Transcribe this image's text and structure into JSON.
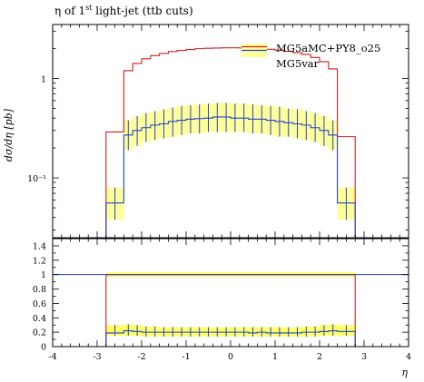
{
  "chart_data": {
    "type": "line",
    "title": "η of 1st light-jet (ttb cuts)",
    "title_pre": "η of 1",
    "title_sup": "st",
    "title_post": " light-jet (ttb cuts)",
    "xlabel": "η",
    "ylabel": "dσ/dη [pb]",
    "xlim": [
      -4,
      4
    ],
    "ylim_main": [
      0.025,
      3.5
    ],
    "y_scale_main": "log",
    "ylim_ratio": [
      0,
      1.5
    ],
    "x_ticks": [
      "-4",
      "-3",
      "-2",
      "-1",
      "0",
      "1",
      "2",
      "3",
      "4"
    ],
    "y_ticks_main": [
      "1",
      "10⁻¹"
    ],
    "y_ticks_ratio": [
      "0",
      "0.2",
      "0.4",
      "0.6",
      "0.8",
      "1",
      "1.2",
      "1.4"
    ],
    "legend_position": "top-right",
    "colors": {
      "mg5amc": "#cc2222",
      "mg5var": "#2244cc",
      "band": "#ffff99",
      "band_ratio": "#ffff66"
    },
    "bin_edges": [
      -2.8,
      -2.4,
      -2.2,
      -2.0,
      -1.8,
      -1.6,
      -1.4,
      -1.2,
      -1.0,
      -0.8,
      -0.6,
      -0.4,
      -0.2,
      0.0,
      0.2,
      0.4,
      0.6,
      0.8,
      1.0,
      1.2,
      1.4,
      1.6,
      1.8,
      2.0,
      2.2,
      2.4,
      2.8
    ],
    "series": [
      {
        "name": "MG5aMC+PY8_o25",
        "values": [
          0.29,
          1.2,
          1.42,
          1.58,
          1.7,
          1.79,
          1.87,
          1.92,
          1.96,
          2.0,
          2.02,
          2.03,
          2.04,
          2.04,
          2.03,
          2.02,
          2.0,
          1.97,
          1.93,
          1.88,
          1.82,
          1.75,
          1.63,
          1.48,
          1.25,
          0.26
        ]
      },
      {
        "name": "MG5var",
        "values": [
          0.056,
          0.27,
          0.3,
          0.32,
          0.34,
          0.35,
          0.37,
          0.38,
          0.39,
          0.395,
          0.4,
          0.41,
          0.41,
          0.4,
          0.4,
          0.39,
          0.39,
          0.38,
          0.37,
          0.36,
          0.35,
          0.34,
          0.32,
          0.3,
          0.27,
          0.056
        ],
        "band_low": [
          0.038,
          0.19,
          0.21,
          0.23,
          0.24,
          0.25,
          0.26,
          0.27,
          0.28,
          0.28,
          0.29,
          0.29,
          0.29,
          0.29,
          0.29,
          0.28,
          0.28,
          0.27,
          0.26,
          0.26,
          0.25,
          0.24,
          0.23,
          0.21,
          0.19,
          0.038
        ],
        "band_high": [
          0.08,
          0.38,
          0.42,
          0.45,
          0.47,
          0.49,
          0.51,
          0.53,
          0.54,
          0.55,
          0.56,
          0.57,
          0.57,
          0.56,
          0.56,
          0.55,
          0.54,
          0.53,
          0.52,
          0.5,
          0.49,
          0.47,
          0.45,
          0.42,
          0.38,
          0.08
        ]
      }
    ],
    "ratio": {
      "reference_name": "MG5aMC+PY8_o25",
      "reference_values": [
        1,
        1,
        1,
        1,
        1,
        1,
        1,
        1,
        1,
        1,
        1,
        1,
        1,
        1,
        1,
        1,
        1,
        1,
        1,
        1,
        1,
        1,
        1,
        1,
        1,
        1
      ],
      "reference_band": 0.03,
      "values": [
        0.19,
        0.22,
        0.21,
        0.2,
        0.2,
        0.2,
        0.2,
        0.2,
        0.2,
        0.2,
        0.2,
        0.2,
        0.2,
        0.2,
        0.2,
        0.19,
        0.2,
        0.19,
        0.19,
        0.19,
        0.19,
        0.2,
        0.2,
        0.21,
        0.22,
        0.21
      ],
      "band_low": [
        0.15,
        0.15,
        0.15,
        0.14,
        0.14,
        0.14,
        0.14,
        0.14,
        0.14,
        0.14,
        0.14,
        0.14,
        0.14,
        0.14,
        0.14,
        0.14,
        0.14,
        0.14,
        0.14,
        0.14,
        0.14,
        0.14,
        0.14,
        0.15,
        0.15,
        0.15
      ],
      "band_high": [
        0.3,
        0.31,
        0.3,
        0.28,
        0.28,
        0.27,
        0.27,
        0.27,
        0.27,
        0.27,
        0.27,
        0.27,
        0.27,
        0.27,
        0.27,
        0.27,
        0.27,
        0.27,
        0.27,
        0.27,
        0.27,
        0.28,
        0.28,
        0.3,
        0.31,
        0.3
      ]
    }
  }
}
